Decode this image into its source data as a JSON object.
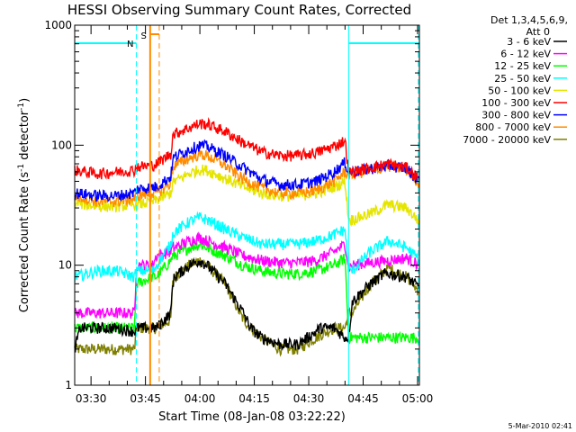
{
  "chart_data": {
    "type": "line",
    "title": "HESSI Observing Summary Count Rates, Corrected",
    "xlabel": "Start Time (08-Jan-08 03:22:22)",
    "ylabel": "Corrected Count Rate (s",
    "ylabel_sup1": "-1",
    "ylabel_mid": " detector",
    "ylabel_sup2": "-1",
    "ylabel_end": ")",
    "yscale": "log",
    "ylim": [
      1,
      1000
    ],
    "xlim_minutes": [
      3.5,
      98.5
    ],
    "x_unit": "minutes after 03:22:22",
    "xticks": [
      {
        "label": "03:30",
        "v": 8
      },
      {
        "label": "03:45",
        "v": 23
      },
      {
        "label": "04:00",
        "v": 38
      },
      {
        "label": "04:15",
        "v": 53
      },
      {
        "label": "04:30",
        "v": 68
      },
      {
        "label": "04:45",
        "v": 83
      },
      {
        "label": "05:00",
        "v": 98
      }
    ],
    "yticks": [
      {
        "label": "1",
        "v": 1
      },
      {
        "label": "10",
        "v": 10
      },
      {
        "label": "100",
        "v": 100
      },
      {
        "label": "1000",
        "v": 1000
      }
    ],
    "legend_header": [
      "Det 1,3,4,5,6,9,",
      "Att 0"
    ],
    "legend_position": "outside-right",
    "series": [
      {
        "name": "3 - 6 keV",
        "color": "#000000",
        "x": [
          3.5,
          5,
          10,
          15,
          20,
          20.5,
          25,
          25.5,
          26,
          30,
          30.5,
          31,
          35,
          38,
          40,
          45,
          50,
          52,
          55,
          60,
          65,
          70,
          71,
          75,
          78,
          79,
          80,
          85,
          89,
          90,
          95,
          98.5
        ],
        "y": [
          2,
          3,
          3,
          3,
          2.8,
          3,
          3,
          3,
          3,
          4,
          7,
          8,
          10,
          11,
          10,
          7,
          4,
          3,
          2.5,
          2.2,
          2.2,
          2.8,
          3,
          3,
          2.5,
          2.5,
          5,
          7,
          8.5,
          8.5,
          8,
          6.5
        ]
      },
      {
        "name": "6 - 12 keV",
        "color": "#ff00ff",
        "x": [
          3.5,
          20,
          20.5,
          25,
          26,
          30,
          30.5,
          31,
          35,
          38,
          40,
          45,
          50,
          55,
          60,
          65,
          70,
          75,
          78,
          79,
          80,
          85,
          90,
          95,
          98.5
        ],
        "y": [
          4,
          4,
          10,
          10,
          12,
          13,
          14,
          14,
          16,
          17,
          16,
          14,
          12,
          11,
          10.5,
          10.5,
          11,
          13,
          15,
          9.5,
          10,
          10.5,
          11,
          11.5,
          10
        ]
      },
      {
        "name": "12 - 25 keV",
        "color": "#00ff00",
        "x": [
          3.5,
          20,
          20.5,
          25,
          26,
          30,
          30.5,
          31,
          35,
          38,
          40,
          45,
          50,
          55,
          60,
          65,
          70,
          75,
          78,
          79,
          80,
          85,
          90,
          95,
          98.5
        ],
        "y": [
          3,
          3,
          7,
          8,
          8,
          11,
          12,
          12,
          14,
          15,
          14,
          12,
          10,
          9,
          8.5,
          8.5,
          9,
          10,
          11.5,
          2.5,
          2.5,
          2.5,
          2.5,
          2.5,
          2.5
        ]
      },
      {
        "name": "25 - 50 keV",
        "color": "#00ffff",
        "x": [
          3.5,
          10,
          15,
          20,
          20.5,
          25,
          26,
          30,
          30.5,
          31,
          35,
          38,
          40,
          45,
          50,
          55,
          60,
          65,
          70,
          75,
          78,
          79,
          80,
          85,
          90,
          95,
          98.5
        ],
        "y": [
          8,
          9,
          9,
          8,
          9,
          9,
          10,
          15,
          18,
          19,
          23,
          25,
          24,
          20,
          17,
          15,
          15,
          15,
          16,
          18,
          20,
          9,
          9,
          13,
          16,
          14,
          11
        ]
      },
      {
        "name": "50 - 100 keV",
        "color": "#e5e500",
        "x": [
          3.5,
          10,
          15,
          20,
          20.5,
          25,
          26,
          30,
          30.5,
          31,
          35,
          38,
          40,
          45,
          50,
          55,
          60,
          65,
          70,
          75,
          78,
          79,
          80,
          85,
          90,
          95,
          98.5
        ],
        "y": [
          33,
          31,
          31,
          32,
          32,
          34,
          35,
          40,
          48,
          50,
          58,
          63,
          62,
          53,
          45,
          40,
          38,
          38,
          40,
          45,
          50,
          24,
          24,
          27,
          32,
          30,
          23
        ]
      },
      {
        "name": "100 - 300 keV",
        "color": "#ff0000",
        "x": [
          3.5,
          10,
          15,
          20,
          20.5,
          25,
          26,
          30,
          30.5,
          31,
          35,
          38,
          40,
          45,
          50,
          55,
          60,
          65,
          70,
          75,
          78,
          79,
          80,
          85,
          90,
          95,
          98.5
        ],
        "y": [
          62,
          58,
          60,
          62,
          66,
          68,
          70,
          85,
          120,
          125,
          140,
          152,
          150,
          130,
          105,
          88,
          82,
          82,
          87,
          98,
          110,
          60,
          60,
          65,
          70,
          65,
          52
        ]
      },
      {
        "name": "300 - 800 keV",
        "color": "#0000ff",
        "x": [
          3.5,
          10,
          15,
          20,
          20.5,
          25,
          26,
          30,
          30.5,
          31,
          35,
          38,
          40,
          45,
          50,
          55,
          60,
          65,
          70,
          75,
          78,
          79,
          80,
          85,
          90,
          95,
          98.5
        ],
        "y": [
          40,
          38,
          38,
          40,
          43,
          45,
          45,
          55,
          75,
          80,
          92,
          100,
          98,
          82,
          65,
          52,
          47,
          47,
          50,
          60,
          72,
          60,
          60,
          64,
          68,
          64,
          50
        ]
      },
      {
        "name": "800 - 7000 keV",
        "color": "#ff8c00",
        "x": [
          3.5,
          10,
          15,
          20,
          20.5,
          25,
          26,
          30,
          30.5,
          31,
          35,
          38,
          40,
          45,
          50,
          55,
          60,
          65,
          70,
          75,
          78,
          79,
          80,
          85,
          90,
          95,
          98.5
        ],
        "y": [
          38,
          34,
          34,
          36,
          38,
          40,
          40,
          48,
          65,
          68,
          78,
          84,
          82,
          68,
          52,
          44,
          40,
          40,
          42,
          50,
          60,
          57,
          57,
          62,
          67,
          62,
          48
        ]
      },
      {
        "name": "7000 - 20000 keV",
        "color": "#7f7f00",
        "x": [
          3.5,
          10,
          15,
          20,
          20.5,
          25,
          26,
          30,
          30.5,
          31,
          35,
          38,
          40,
          45,
          50,
          55,
          60,
          65,
          70,
          75,
          78,
          79,
          80,
          85,
          90,
          95,
          98.5
        ],
        "y": [
          2,
          2,
          2,
          2,
          3,
          3,
          3,
          3.5,
          7,
          8,
          10,
          11,
          10,
          7,
          3.5,
          2.5,
          2,
          2,
          2.5,
          3,
          3,
          4,
          4,
          7,
          9.5,
          8,
          6
        ]
      }
    ],
    "annotations": [
      {
        "label": "N",
        "color": "#00ffff"
      },
      {
        "label": "S",
        "color": "#ff8c00"
      }
    ],
    "footer": "5-Mar-2010 02:41"
  }
}
